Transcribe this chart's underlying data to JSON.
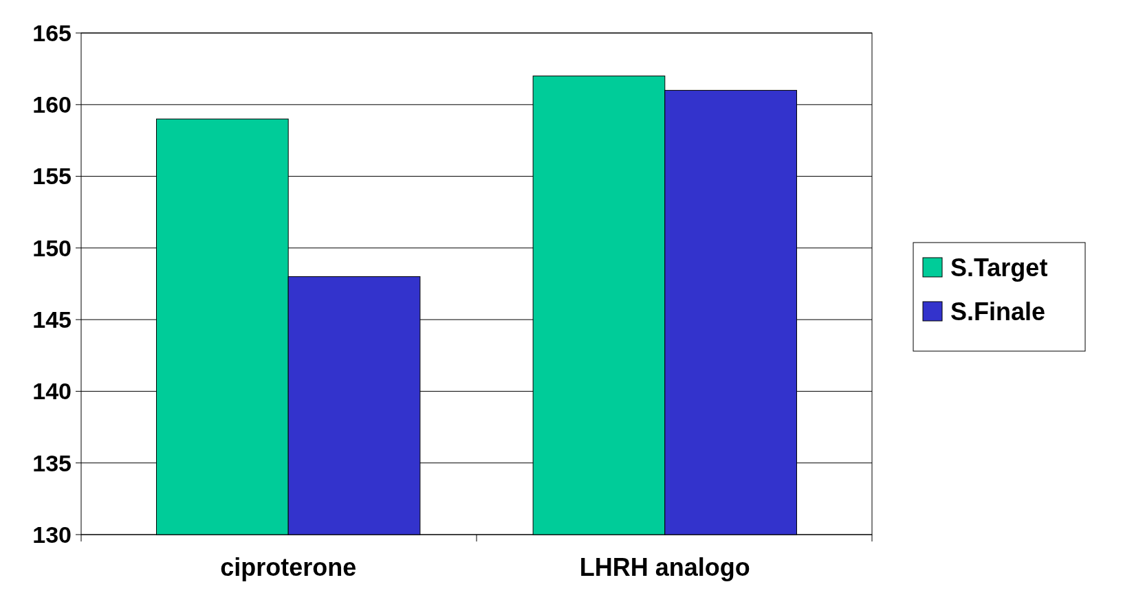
{
  "chart_data": {
    "type": "bar",
    "categories": [
      "ciproterone",
      "LHRH analogo"
    ],
    "series": [
      {
        "name": "S.Target",
        "color": "#00cc99",
        "values": [
          159,
          162
        ]
      },
      {
        "name": "S.Finale",
        "color": "#3333cc",
        "values": [
          148,
          161
        ]
      }
    ],
    "ylim": [
      130,
      165
    ],
    "yticks": [
      130,
      135,
      140,
      145,
      150,
      155,
      160,
      165
    ],
    "grid": "y",
    "legend": "right"
  }
}
